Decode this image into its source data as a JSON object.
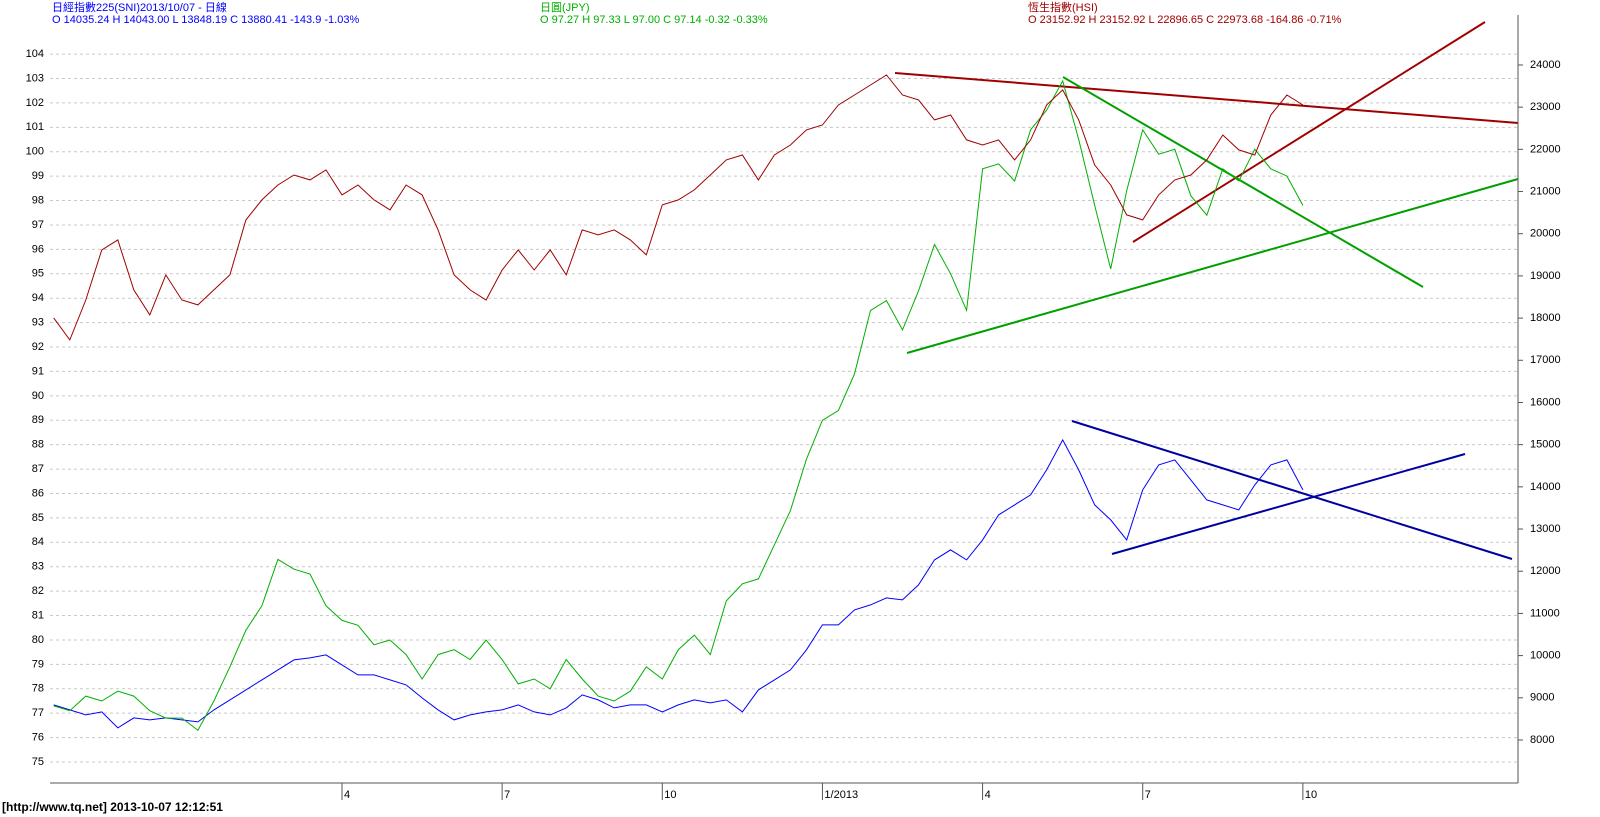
{
  "chart_data": {
    "type": "line",
    "x": [
      -2.4,
      -2.1,
      -1.8,
      -1.5,
      -1.2,
      -0.9,
      -0.6,
      -0.3,
      0,
      0.3,
      0.6,
      0.9,
      1.2,
      1.5,
      1.8,
      2.1,
      2.4,
      2.7,
      3.0,
      3.3,
      3.6,
      3.9,
      4.2,
      4.5,
      4.8,
      5.1,
      5.4,
      5.7,
      6.0,
      6.3,
      6.6,
      6.9,
      7.2,
      7.5,
      7.8,
      8.1,
      8.4,
      8.7,
      9.0,
      9.3,
      9.6,
      9.9,
      10.2,
      10.5,
      10.8,
      11.1,
      11.4,
      11.7,
      12.0,
      12.3,
      12.6,
      12.9,
      13.2,
      13.5,
      13.8,
      14.1,
      14.4,
      14.7,
      15.0,
      15.3,
      15.6,
      15.9,
      16.2,
      16.5,
      16.8,
      17.1,
      17.4,
      17.7,
      18.0,
      18.3,
      18.6,
      18.9,
      19.2,
      19.5,
      19.8,
      20.1,
      20.4,
      20.7,
      21.0
    ],
    "series": [
      {
        "name": "日經指數225(SNI)2013/10/07  - 日線",
        "quote": "O 14035.24 H 14043.00 L 13848.19 C 13880.41  -143.9  -1.03%",
        "color": "#0000ff",
        "axis": "y2",
        "values": [
          8832,
          8713,
          8595,
          8666,
          8287,
          8524,
          8476,
          8524,
          8476,
          8429,
          8713,
          8950,
          9187,
          9424,
          9661,
          9898,
          9946,
          10017,
          9780,
          9543,
          9543,
          9424,
          9306,
          8997,
          8713,
          8476,
          8595,
          8666,
          8713,
          8832,
          8666,
          8595,
          8761,
          9069,
          8950,
          8761,
          8832,
          8832,
          8666,
          8832,
          8950,
          8879,
          8950,
          8666,
          9187,
          9424,
          9661,
          10135,
          10728,
          10728,
          11084,
          11202,
          11368,
          11321,
          11676,
          12269,
          12505,
          12269,
          12743,
          13335,
          13572,
          13809,
          14402,
          15113,
          14402,
          13572,
          13217,
          12743,
          13928,
          14520,
          14639,
          14165,
          13691,
          13572,
          13454,
          14046,
          14520,
          14639,
          13928
        ]
      },
      {
        "name": "日圓(JPY)",
        "quote": "O 97.27 H 97.33 L 97.00 C 97.14  -0.32  -0.33%",
        "color": "#00b000",
        "values": [
          77.3,
          77.1,
          77.7,
          77.5,
          77.9,
          77.7,
          77.1,
          76.8,
          76.8,
          76.3,
          77.5,
          78.9,
          80.4,
          81.4,
          83.3,
          82.9,
          82.7,
          81.4,
          80.8,
          80.6,
          79.8,
          80.0,
          79.4,
          78.4,
          79.4,
          79.6,
          79.2,
          80.0,
          79.2,
          78.2,
          78.4,
          78.0,
          79.2,
          78.4,
          77.7,
          77.5,
          77.9,
          78.9,
          78.4,
          79.6,
          80.2,
          79.4,
          81.6,
          82.3,
          82.5,
          83.9,
          85.3,
          87.4,
          89.0,
          89.4,
          90.9,
          93.5,
          93.9,
          92.7,
          94.3,
          96.2,
          95.0,
          93.5,
          99.3,
          99.5,
          98.8,
          100.9,
          101.7,
          102.9,
          100.5,
          97.8,
          95.2,
          98.4,
          100.9,
          99.9,
          100.1,
          98.2,
          97.4,
          99.3,
          98.8,
          100.1,
          99.3,
          99.0,
          97.8
        ]
      },
      {
        "name": "恆生指數(HSI)",
        "quote": "O 23152.92 H 23152.92 L 22896.65 C 22973.68  -164.86  -0.71%",
        "color": "#a00000",
        "axis": "y2",
        "values": [
          18004,
          17483,
          18430,
          19616,
          19853,
          18668,
          18075,
          19023,
          18430,
          18312,
          18668,
          19023,
          20327,
          20801,
          21156,
          21393,
          21275,
          21512,
          20919,
          21156,
          20801,
          20564,
          21156,
          20919,
          20090,
          19023,
          18668,
          18430,
          19141,
          19616,
          19141,
          19616,
          19023,
          20090,
          19971,
          20090,
          19853,
          19497,
          20682,
          20801,
          21038,
          21393,
          21749,
          21867,
          21275,
          21867,
          22104,
          22460,
          22578,
          23052,
          23289,
          23526,
          23763,
          23289,
          23171,
          22697,
          22815,
          22223,
          22104,
          22223,
          21749,
          22223,
          23052,
          23408,
          22697,
          21630,
          21156,
          20445,
          20327,
          20919,
          21275,
          21393,
          21749,
          22341,
          21986,
          21867,
          22815,
          23289,
          23052
        ]
      }
    ],
    "xlim": [
      -2.47,
      25.03
    ],
    "xticks": [
      {
        "value": 3,
        "label": "4"
      },
      {
        "value": 6,
        "label": "7"
      },
      {
        "value": 9,
        "label": "10"
      },
      {
        "value": 12,
        "label": "1/2013"
      },
      {
        "value": 15,
        "label": "4"
      },
      {
        "value": 18,
        "label": "7"
      },
      {
        "value": 21,
        "label": "10"
      }
    ],
    "ylim": [
      74.14,
      105.11
    ],
    "yticks": [
      75,
      76,
      77,
      78,
      79,
      80,
      81,
      82,
      83,
      84,
      85,
      86,
      87,
      88,
      89,
      90,
      91,
      92,
      93,
      94,
      95,
      96,
      97,
      98,
      99,
      100,
      101,
      102,
      103,
      104
    ],
    "y2lim": [
      6980,
      24900
    ],
    "y2ticks": [
      8000,
      9000,
      10000,
      11000,
      12000,
      13000,
      14000,
      15000,
      16000,
      17000,
      18000,
      19000,
      20000,
      21000,
      22000,
      23000,
      24000
    ],
    "grid": true,
    "footer": "[http://www.tq.net] 2013-10-07 12:12:51"
  }
}
